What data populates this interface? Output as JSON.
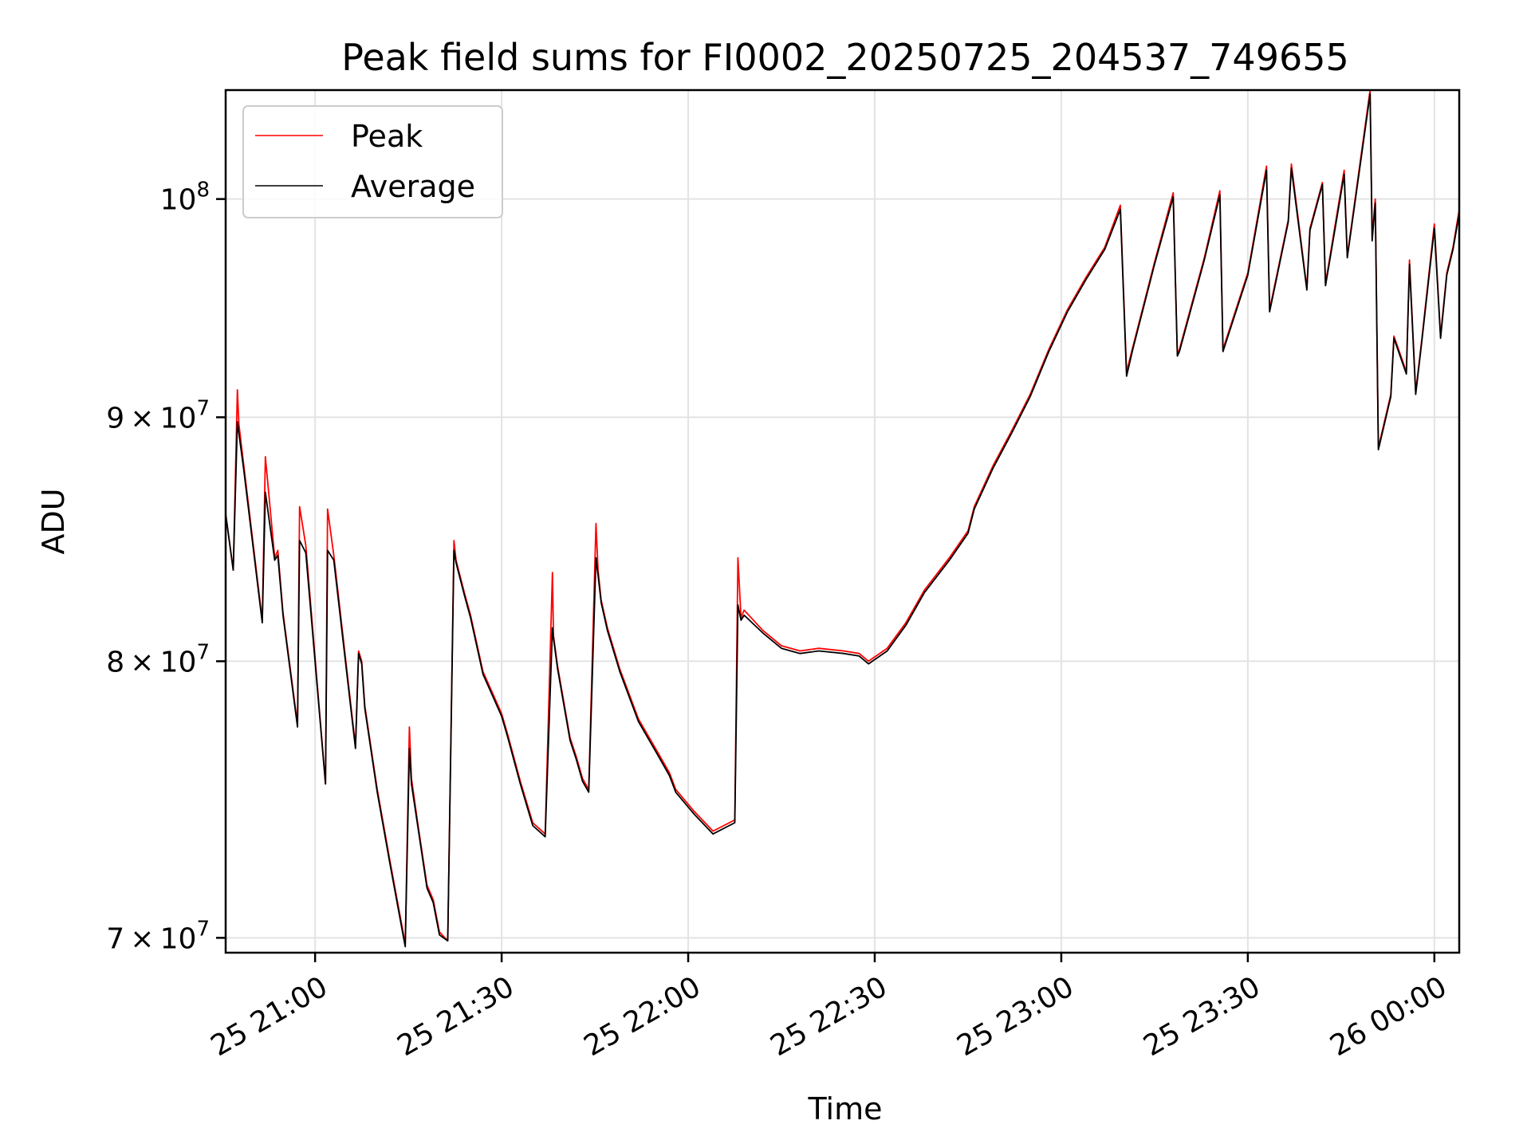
{
  "chart_data": {
    "type": "line",
    "title": "Peak field sums for FI0002_20250725_204537_749655",
    "xlabel": "Time",
    "ylabel": "ADU",
    "y_scale": "log",
    "xlim": [
      "2025-07-25T20:45:37",
      "2025-07-26T00:04:00"
    ],
    "ylim": [
      69500000,
      105400000
    ],
    "grid": true,
    "legend_position": "top-left",
    "x_ticks": [
      {
        "value": "2025-07-25T21:00:00",
        "label": "25 21:00"
      },
      {
        "value": "2025-07-25T21:30:00",
        "label": "25 21:30"
      },
      {
        "value": "2025-07-25T22:00:00",
        "label": "25 22:00"
      },
      {
        "value": "2025-07-25T22:30:00",
        "label": "25 22:30"
      },
      {
        "value": "2025-07-25T23:00:00",
        "label": "25 23:00"
      },
      {
        "value": "2025-07-25T23:30:00",
        "label": "25 23:30"
      },
      {
        "value": "2025-07-26T00:00:00",
        "label": "26 00:00"
      }
    ],
    "y_ticks": [
      {
        "value": 70000000,
        "mantissa": "7",
        "base": "10",
        "exp": "7"
      },
      {
        "value": 80000000,
        "mantissa": "8",
        "base": "10",
        "exp": "7"
      },
      {
        "value": 90000000,
        "mantissa": "9",
        "base": "10",
        "exp": "7"
      },
      {
        "value": 100000000,
        "mantissa": "",
        "base": "10",
        "exp": "8"
      }
    ],
    "series": [
      {
        "name": "Peak",
        "color": "#ff0000",
        "x": [
          "2025-07-25T20:45:37",
          "2025-07-25T20:46:50",
          "2025-07-25T20:47:30",
          "2025-07-25T20:47:45",
          "2025-07-25T20:48:30",
          "2025-07-25T20:51:30",
          "2025-07-25T20:52:00",
          "2025-07-25T20:53:30",
          "2025-07-25T20:54:00",
          "2025-07-25T20:54:50",
          "2025-07-25T20:57:10",
          "2025-07-25T20:57:30",
          "2025-07-25T20:58:30",
          "2025-07-25T21:01:40",
          "2025-07-25T21:02:00",
          "2025-07-25T21:03:00",
          "2025-07-25T21:06:30",
          "2025-07-25T21:07:00",
          "2025-07-25T21:07:30",
          "2025-07-25T21:08:00",
          "2025-07-25T21:10:00",
          "2025-07-25T21:12:00",
          "2025-07-25T21:14:30",
          "2025-07-25T21:15:10",
          "2025-07-25T21:15:30",
          "2025-07-25T21:16:30",
          "2025-07-25T21:18:00",
          "2025-07-25T21:19:00",
          "2025-07-25T21:20:00",
          "2025-07-25T21:21:20",
          "2025-07-25T21:22:20",
          "2025-07-25T21:22:40",
          "2025-07-25T21:24:00",
          "2025-07-25T21:25:00",
          "2025-07-25T21:27:00",
          "2025-07-25T21:28:30",
          "2025-07-25T21:30:00",
          "2025-07-25T21:31:00",
          "2025-07-25T21:33:00",
          "2025-07-25T21:35:00",
          "2025-07-25T21:37:00",
          "2025-07-25T21:38:10",
          "2025-07-25T21:38:20",
          "2025-07-25T21:39:00",
          "2025-07-25T21:41:00",
          "2025-07-25T21:42:00",
          "2025-07-25T21:43:00",
          "2025-07-25T21:44:00",
          "2025-07-25T21:45:10",
          "2025-07-25T21:45:30",
          "2025-07-25T21:46:00",
          "2025-07-25T21:47:00",
          "2025-07-25T21:49:00",
          "2025-07-25T21:52:00",
          "2025-07-25T21:55:00",
          "2025-07-25T21:57:00",
          "2025-07-25T21:58:00",
          "2025-07-25T22:01:00",
          "2025-07-25T22:04:00",
          "2025-07-25T22:07:30",
          "2025-07-25T22:08:00",
          "2025-07-25T22:08:30",
          "2025-07-25T22:09:00",
          "2025-07-25T22:12:00",
          "2025-07-25T22:15:00",
          "2025-07-25T22:18:00",
          "2025-07-25T22:21:00",
          "2025-07-25T22:25:00",
          "2025-07-25T22:27:30",
          "2025-07-25T22:29:00",
          "2025-07-25T22:32:00",
          "2025-07-25T22:35:00",
          "2025-07-25T22:38:00",
          "2025-07-25T22:42:00",
          "2025-07-25T22:45:00",
          "2025-07-25T22:46:00",
          "2025-07-25T22:49:00",
          "2025-07-25T22:52:00",
          "2025-07-25T22:55:00",
          "2025-07-25T22:58:00",
          "2025-07-25T23:01:00",
          "2025-07-25T23:04:00",
          "2025-07-25T23:07:00",
          "2025-07-25T23:09:30",
          "2025-07-25T23:10:30",
          "2025-07-25T23:11:30",
          "2025-07-25T23:15:00",
          "2025-07-25T23:18:00",
          "23:18:40",
          "2025-07-25T23:19:00",
          "2025-07-25T23:23:00",
          "2025-07-25T23:25:30",
          "2025-07-25T23:26:00",
          "2025-07-25T23:30:00",
          "2025-07-25T23:33:00",
          "2025-07-25T23:33:30",
          "2025-07-25T23:36:30",
          "2025-07-25T23:37:00",
          "2025-07-25T23:39:30",
          "2025-07-25T23:40:00",
          "2025-07-25T23:42:00",
          "2025-07-25T23:42:30",
          "2025-07-25T23:45:30",
          "2025-07-25T23:46:00",
          "2025-07-25T23:49:40",
          "2025-07-25T23:50:00",
          "2025-07-25T23:50:30",
          "2025-07-25T23:51:00",
          "2025-07-25T23:53:00",
          "2025-07-25T23:53:30",
          "2025-07-25T23:55:30",
          "2025-07-25T23:56:00",
          "2025-07-25T23:57:00",
          "2025-07-25T23:58:00",
          "2025-07-26T00:00:00",
          "2025-07-26T00:01:00",
          "2025-07-26T00:02:00",
          "2025-07-26T00:03:00",
          "2025-07-26T00:04:00"
        ],
        "y": [
          85900000,
          83600000,
          91200000,
          89700000,
          88000000,
          81600000,
          88300000,
          84100000,
          84400000,
          81900000,
          77600000,
          86200000,
          84600000,
          75400000,
          86100000,
          84200000,
          76800000,
          80400000,
          80000000,
          78300000,
          75200000,
          72700000,
          69800000,
          77500000,
          75600000,
          74000000,
          71800000,
          71300000,
          70200000,
          69900000,
          84800000,
          84000000,
          82700000,
          81800000,
          79600000,
          78800000,
          78000000,
          77200000,
          75500000,
          74000000,
          73600000,
          83500000,
          81000000,
          79800000,
          77100000,
          76400000,
          75600000,
          75200000,
          85500000,
          83600000,
          82400000,
          81300000,
          79700000,
          77800000,
          76600000,
          75800000,
          75200000,
          74400000,
          73700000,
          74100000,
          84100000,
          81700000,
          82000000,
          81200000,
          80600000,
          80400000,
          80500000,
          80400000,
          80300000,
          80000000,
          80500000,
          81500000,
          82800000,
          84100000,
          85200000,
          86200000,
          87900000,
          89400000,
          91000000,
          93000000,
          94800000,
          96300000,
          97700000,
          99700000,
          92000000,
          93100000,
          97000000,
          100300000,
          92800000,
          93000000,
          97200000,
          100400000,
          93000000,
          96500000,
          101600000,
          94800000,
          99000000,
          101700000,
          95800000,
          98600000,
          100800000,
          96000000,
          101400000,
          97300000,
          105400000,
          98200000,
          100000000,
          88700000,
          91000000,
          93600000,
          92000000,
          97100000,
          91100000,
          93500000,
          98800000,
          93600000,
          96500000,
          97700000,
          99500000
        ]
      },
      {
        "name": "Average",
        "color": "#000000",
        "x": [
          "2025-07-25T20:45:37",
          "2025-07-25T20:46:50",
          "2025-07-25T20:47:30",
          "2025-07-25T20:47:45",
          "2025-07-25T20:48:30",
          "2025-07-25T20:51:30",
          "2025-07-25T20:52:00",
          "2025-07-25T20:53:30",
          "2025-07-25T20:54:00",
          "2025-07-25T20:54:50",
          "2025-07-25T20:57:10",
          "2025-07-25T20:57:30",
          "2025-07-25T20:58:30",
          "2025-07-25T21:01:40",
          "2025-07-25T21:02:00",
          "2025-07-25T21:03:00",
          "2025-07-25T21:06:30",
          "2025-07-25T21:07:00",
          "2025-07-25T21:07:30",
          "2025-07-25T21:08:00",
          "2025-07-25T21:10:00",
          "2025-07-25T21:12:00",
          "2025-07-25T21:14:30",
          "2025-07-25T21:15:10",
          "2025-07-25T21:15:30",
          "2025-07-25T21:16:30",
          "2025-07-25T21:18:00",
          "2025-07-25T21:19:00",
          "2025-07-25T21:20:00",
          "2025-07-25T21:21:20",
          "2025-07-25T21:22:20",
          "2025-07-25T21:22:40",
          "2025-07-25T21:24:00",
          "2025-07-25T21:25:00",
          "2025-07-25T21:27:00",
          "2025-07-25T21:28:30",
          "2025-07-25T21:30:00",
          "2025-07-25T21:31:00",
          "2025-07-25T21:33:00",
          "2025-07-25T21:35:00",
          "2025-07-25T21:37:00",
          "2025-07-25T21:38:10",
          "2025-07-25T21:38:20",
          "2025-07-25T21:39:00",
          "2025-07-25T21:41:00",
          "2025-07-25T21:42:00",
          "2025-07-25T21:43:00",
          "2025-07-25T21:44:00",
          "2025-07-25T21:45:10",
          "2025-07-25T21:45:30",
          "2025-07-25T21:46:00",
          "2025-07-25T21:47:00",
          "2025-07-25T21:49:00",
          "2025-07-25T21:52:00",
          "2025-07-25T21:55:00",
          "2025-07-25T21:57:00",
          "2025-07-25T21:58:00",
          "2025-07-25T22:01:00",
          "2025-07-25T22:04:00",
          "2025-07-25T22:07:30",
          "2025-07-25T22:08:00",
          "2025-07-25T22:08:30",
          "2025-07-25T22:09:00",
          "2025-07-25T22:12:00",
          "2025-07-25T22:15:00",
          "2025-07-25T22:18:00",
          "2025-07-25T22:21:00",
          "2025-07-25T22:25:00",
          "2025-07-25T22:27:30",
          "2025-07-25T22:29:00",
          "2025-07-25T22:32:00",
          "2025-07-25T22:35:00",
          "2025-07-25T22:38:00",
          "2025-07-25T22:42:00",
          "2025-07-25T22:45:00",
          "2025-07-25T22:46:00",
          "2025-07-25T22:49:00",
          "2025-07-25T22:52:00",
          "2025-07-25T22:55:00",
          "2025-07-25T22:58:00",
          "2025-07-25T23:01:00",
          "2025-07-25T23:04:00",
          "2025-07-25T23:07:00",
          "2025-07-25T23:09:30",
          "2025-07-25T23:10:30",
          "2025-07-25T23:11:30",
          "2025-07-25T23:15:00",
          "2025-07-25T23:18:00",
          "2025-07-25T23:18:40",
          "2025-07-25T23:19:00",
          "2025-07-25T23:23:00",
          "2025-07-25T23:25:30",
          "2025-07-25T23:26:00",
          "2025-07-25T23:30:00",
          "2025-07-25T23:33:00",
          "2025-07-25T23:33:30",
          "2025-07-25T23:36:30",
          "2025-07-25T23:37:00",
          "2025-07-25T23:39:30",
          "2025-07-25T23:40:00",
          "2025-07-25T23:42:00",
          "2025-07-25T23:42:30",
          "2025-07-25T23:45:30",
          "2025-07-25T23:46:00",
          "2025-07-25T23:49:40",
          "2025-07-25T23:50:00",
          "2025-07-25T23:50:30",
          "2025-07-25T23:51:00",
          "2025-07-25T23:53:00",
          "2025-07-25T23:53:30",
          "2025-07-25T23:55:30",
          "2025-07-25T23:56:00",
          "2025-07-25T23:57:00",
          "2025-07-25T23:58:00",
          "2025-07-26T00:00:00",
          "2025-07-26T00:01:00",
          "2025-07-26T00:02:00",
          "2025-07-26T00:03:00",
          "2025-07-26T00:04:00"
        ],
        "y": [
          85900000,
          83600000,
          89800000,
          89300000,
          87800000,
          81500000,
          86800000,
          84000000,
          84200000,
          81800000,
          77500000,
          84800000,
          84300000,
          75400000,
          84400000,
          84000000,
          76700000,
          80300000,
          79900000,
          78200000,
          75100000,
          72600000,
          69700000,
          76700000,
          75400000,
          73900000,
          71700000,
          71200000,
          70100000,
          69900000,
          84400000,
          83900000,
          82600000,
          81700000,
          79500000,
          78700000,
          77900000,
          77100000,
          75400000,
          73900000,
          73500000,
          81300000,
          80900000,
          79700000,
          77000000,
          76300000,
          75500000,
          75100000,
          84100000,
          83400000,
          82300000,
          81200000,
          79600000,
          77700000,
          76500000,
          75700000,
          75100000,
          74300000,
          73600000,
          74000000,
          82200000,
          81600000,
          81800000,
          81100000,
          80500000,
          80300000,
          80400000,
          80300000,
          80200000,
          79900000,
          80400000,
          81400000,
          82700000,
          84000000,
          85100000,
          86100000,
          87800000,
          89300000,
          90900000,
          92900000,
          94700000,
          96200000,
          97600000,
          99500000,
          91800000,
          93000000,
          96900000,
          100100000,
          92700000,
          92900000,
          97100000,
          100200000,
          92900000,
          96400000,
          101400000,
          94700000,
          98900000,
          101500000,
          95700000,
          98500000,
          100700000,
          95900000,
          101200000,
          97200000,
          105200000,
          98000000,
          99800000,
          88600000,
          90900000,
          93500000,
          91900000,
          96900000,
          91000000,
          93400000,
          98600000,
          93500000,
          96400000,
          97600000,
          99300000
        ]
      }
    ]
  }
}
